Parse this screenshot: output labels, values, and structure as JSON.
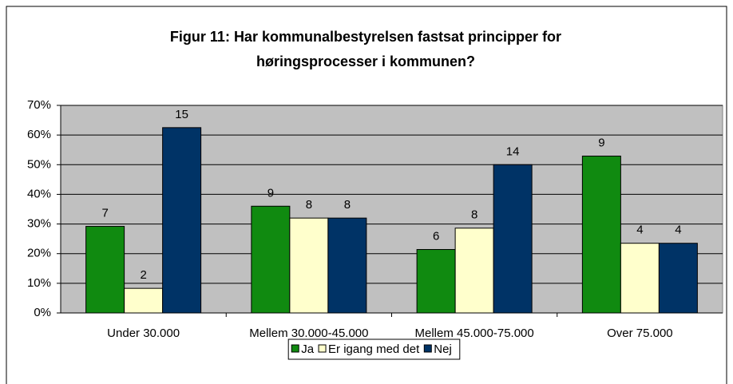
{
  "chart_data": {
    "type": "bar",
    "title": [
      "Figur 11: Har kommunalbestyrelsen fastsat principper for",
      "høringsprocesser i kommunen?"
    ],
    "categories": [
      "Under 30.000",
      "Mellem 30.000-45.000",
      "Mellem 45.000-75.000",
      "Over 75.000"
    ],
    "series": [
      {
        "name": "Ja",
        "color": "#108a10",
        "values": [
          29.2,
          36,
          21.4,
          52.9
        ],
        "counts": [
          7,
          9,
          6,
          9
        ]
      },
      {
        "name": "Er igang med det",
        "color": "#ffffcc",
        "values": [
          8.3,
          32,
          28.6,
          23.5
        ],
        "counts": [
          2,
          8,
          8,
          4
        ]
      },
      {
        "name": "Nej",
        "color": "#003366",
        "values": [
          62.5,
          32,
          50,
          23.5
        ],
        "counts": [
          15,
          8,
          14,
          4
        ]
      }
    ],
    "ylim": [
      0,
      70
    ],
    "yticks": [
      {
        "value": 0,
        "label": "0%"
      },
      {
        "value": 10,
        "label": "10%"
      },
      {
        "value": 20,
        "label": "20%"
      },
      {
        "value": 30,
        "label": "30%"
      },
      {
        "value": 40,
        "label": "40%"
      },
      {
        "value": 50,
        "label": "50%"
      },
      {
        "value": 60,
        "label": "60%"
      },
      {
        "value": 70,
        "label": "70%"
      }
    ],
    "grid": true,
    "legend": "bottom"
  }
}
